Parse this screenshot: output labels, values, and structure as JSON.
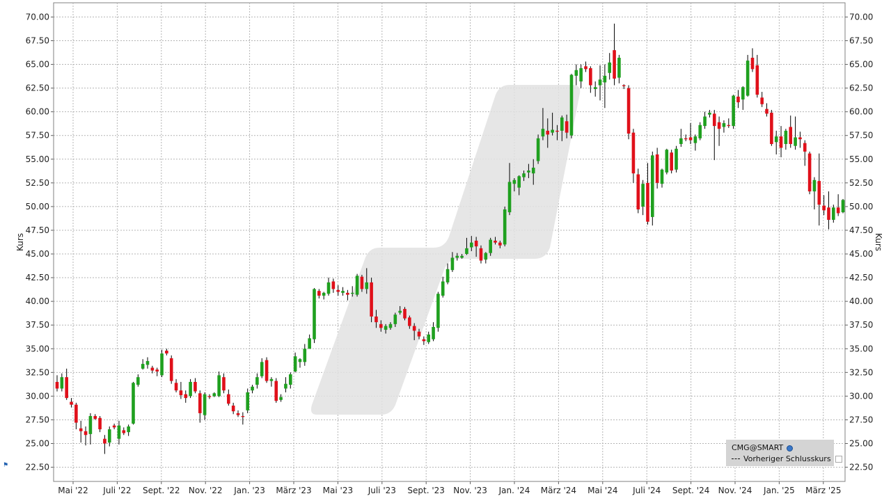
{
  "chart_data": {
    "type": "candlestick",
    "ylabel_left": "Kurs",
    "ylabel_right": "Kurs",
    "ylim": [
      21.0,
      71.5
    ],
    "yticks": [
      "22.50",
      "25.00",
      "27.50",
      "30.00",
      "32.50",
      "35.00",
      "37.50",
      "40.00",
      "42.50",
      "45.00",
      "47.50",
      "50.00",
      "52.50",
      "55.00",
      "57.50",
      "60.00",
      "62.50",
      "65.00",
      "67.50",
      "70.00"
    ],
    "xticks": [
      "Mai '22",
      "Juli '22",
      "Sept. '22",
      "Nov. '22",
      "Jan. '23",
      "März '23",
      "Mai '23",
      "Juli '23",
      "Sept. '23",
      "Nov. '23",
      "Jan. '24",
      "März '24",
      "Mai '24",
      "Juli '24",
      "Sept. '24",
      "Nov. '24",
      "Jan. '25",
      "März '25"
    ],
    "grid": true,
    "legend_position": "bottom-right",
    "legend": {
      "symbol": "CMG@SMART",
      "prev_close_label": "Vorheriger Schlusskurs"
    },
    "colors": {
      "up": "#1fa01f",
      "down": "#e0101a",
      "wick": "#000000",
      "grid": "#b4b4b4"
    },
    "candles": [
      [
        31.5,
        32.2,
        30.5,
        30.8
      ],
      [
        30.8,
        32.4,
        30.5,
        32.0
      ],
      [
        32.0,
        32.9,
        29.6,
        29.8
      ],
      [
        29.4,
        29.8,
        28.8,
        29.1
      ],
      [
        29.1,
        29.3,
        26.5,
        27.2
      ],
      [
        26.6,
        27.4,
        25.1,
        26.3
      ],
      [
        26.3,
        26.8,
        24.8,
        25.9
      ],
      [
        26.0,
        28.2,
        24.9,
        27.9
      ],
      [
        27.9,
        28.1,
        27.5,
        27.6
      ],
      [
        27.7,
        27.9,
        26.2,
        26.5
      ],
      [
        25.5,
        25.9,
        23.9,
        25.0
      ],
      [
        25.1,
        26.8,
        24.7,
        26.5
      ],
      [
        26.9,
        27.1,
        26.5,
        26.7
      ],
      [
        25.5,
        27.4,
        24.9,
        26.9
      ],
      [
        26.4,
        26.7,
        25.9,
        26.1
      ],
      [
        26.2,
        27.0,
        25.8,
        26.8
      ],
      [
        27.1,
        31.5,
        27.0,
        31.4
      ],
      [
        31.2,
        32.3,
        31.0,
        32.0
      ],
      [
        32.9,
        33.9,
        32.8,
        33.4
      ],
      [
        33.3,
        34.1,
        32.9,
        33.7
      ],
      [
        33.0,
        33.2,
        32.4,
        32.7
      ],
      [
        32.8,
        33.0,
        32.1,
        32.6
      ],
      [
        32.2,
        34.9,
        32.0,
        34.5
      ],
      [
        34.8,
        35.0,
        34.3,
        34.5
      ],
      [
        34.0,
        34.3,
        31.3,
        31.6
      ],
      [
        31.4,
        31.8,
        30.4,
        30.6
      ],
      [
        30.6,
        31.5,
        29.7,
        30.1
      ],
      [
        30.2,
        30.6,
        29.3,
        29.8
      ],
      [
        30.0,
        31.8,
        29.8,
        31.5
      ],
      [
        31.5,
        31.9,
        30.3,
        30.5
      ],
      [
        30.3,
        30.6,
        27.2,
        28.2
      ],
      [
        28.0,
        30.4,
        27.5,
        30.2
      ],
      [
        30.0,
        30.2,
        29.7,
        29.9
      ],
      [
        30.0,
        30.4,
        29.9,
        30.3
      ],
      [
        30.0,
        32.6,
        29.9,
        32.2
      ],
      [
        32.0,
        32.4,
        30.3,
        30.6
      ],
      [
        30.2,
        30.7,
        29.0,
        29.2
      ],
      [
        29.0,
        29.3,
        28.1,
        28.4
      ],
      [
        28.2,
        28.5,
        27.8,
        28.0
      ],
      [
        27.9,
        28.3,
        27.0,
        27.8
      ],
      [
        28.5,
        30.8,
        28.2,
        30.4
      ],
      [
        30.6,
        31.2,
        30.3,
        31.0
      ],
      [
        31.2,
        32.4,
        30.8,
        32.0
      ],
      [
        32.1,
        34.0,
        31.9,
        33.6
      ],
      [
        33.8,
        34.1,
        31.4,
        31.6
      ],
      [
        31.6,
        32.0,
        31.0,
        31.8
      ],
      [
        31.6,
        31.9,
        29.3,
        29.5
      ],
      [
        29.6,
        30.2,
        29.4,
        29.9
      ],
      [
        30.8,
        32.0,
        30.4,
        31.3
      ],
      [
        31.2,
        32.5,
        30.8,
        32.3
      ],
      [
        32.6,
        34.6,
        32.5,
        34.2
      ],
      [
        33.6,
        34.0,
        33.0,
        33.9
      ],
      [
        33.6,
        35.5,
        33.2,
        35.0
      ],
      [
        35.0,
        36.5,
        35.0,
        36.1
      ],
      [
        36.0,
        41.4,
        35.6,
        41.3
      ],
      [
        41.1,
        41.3,
        40.3,
        40.6
      ],
      [
        40.6,
        41.0,
        40.2,
        40.9
      ],
      [
        40.8,
        42.5,
        40.6,
        42.0
      ],
      [
        42.1,
        42.4,
        40.9,
        41.3
      ],
      [
        41.2,
        41.7,
        40.6,
        41.0
      ],
      [
        40.9,
        41.5,
        40.6,
        41.1
      ],
      [
        40.9,
        41.2,
        40.1,
        40.7
      ],
      [
        40.8,
        41.6,
        40.5,
        40.9
      ],
      [
        40.7,
        42.9,
        40.5,
        42.7
      ],
      [
        42.6,
        42.8,
        41.0,
        41.3
      ],
      [
        41.3,
        43.5,
        40.8,
        42.0
      ],
      [
        42.0,
        42.5,
        37.8,
        38.4
      ],
      [
        38.4,
        39.1,
        37.2,
        37.8
      ],
      [
        37.6,
        38.0,
        36.8,
        37.2
      ],
      [
        37.0,
        37.6,
        36.6,
        37.4
      ],
      [
        37.2,
        37.8,
        37.0,
        37.6
      ],
      [
        37.6,
        38.8,
        37.3,
        38.6
      ],
      [
        38.8,
        39.5,
        38.6,
        39.0
      ],
      [
        39.2,
        39.4,
        38.0,
        38.2
      ],
      [
        38.3,
        38.5,
        37.1,
        37.4
      ],
      [
        37.4,
        37.7,
        35.9,
        36.9
      ],
      [
        36.8,
        37.1,
        36.0,
        36.3
      ],
      [
        36.0,
        36.3,
        35.4,
        35.8
      ],
      [
        35.7,
        36.8,
        35.5,
        36.5
      ],
      [
        36.0,
        37.8,
        35.8,
        37.3
      ],
      [
        37.2,
        41.0,
        36.8,
        40.8
      ],
      [
        40.6,
        42.6,
        40.4,
        42.1
      ],
      [
        42.0,
        44.0,
        41.8,
        43.4
      ],
      [
        43.3,
        45.2,
        43.1,
        44.6
      ],
      [
        44.6,
        45.1,
        44.3,
        44.8
      ],
      [
        44.6,
        45.0,
        44.5,
        44.8
      ],
      [
        45.0,
        46.7,
        44.9,
        45.6
      ],
      [
        45.7,
        46.9,
        45.3,
        46.2
      ],
      [
        46.4,
        46.8,
        44.7,
        45.8
      ],
      [
        45.6,
        45.9,
        44.0,
        44.3
      ],
      [
        44.4,
        45.2,
        44.0,
        45.1
      ],
      [
        45.1,
        46.7,
        44.8,
        46.5
      ],
      [
        46.4,
        46.8,
        46.0,
        46.2
      ],
      [
        46.2,
        46.4,
        45.6,
        45.9
      ],
      [
        46.0,
        50.0,
        45.8,
        49.7
      ],
      [
        49.4,
        54.6,
        49.1,
        52.6
      ],
      [
        52.4,
        53.0,
        51.6,
        52.8
      ],
      [
        52.0,
        53.3,
        51.2,
        53.2
      ],
      [
        53.1,
        53.8,
        52.7,
        53.5
      ],
      [
        53.6,
        54.5,
        53.0,
        53.8
      ],
      [
        53.5,
        55.0,
        52.3,
        54.1
      ],
      [
        54.8,
        57.6,
        54.5,
        57.2
      ],
      [
        57.4,
        60.4,
        57.0,
        58.2
      ],
      [
        58.0,
        59.3,
        56.2,
        57.6
      ],
      [
        57.8,
        59.9,
        57.5,
        58.1
      ],
      [
        58.0,
        58.6,
        57.0,
        57.9
      ],
      [
        58.0,
        59.6,
        56.9,
        59.4
      ],
      [
        59.0,
        59.7,
        57.2,
        57.8
      ],
      [
        57.5,
        64.0,
        57.2,
        63.9
      ],
      [
        63.8,
        65.0,
        62.8,
        64.4
      ],
      [
        63.2,
        65.0,
        62.5,
        64.6
      ],
      [
        64.8,
        65.3,
        64.2,
        64.5
      ],
      [
        64.6,
        64.8,
        62.0,
        62.8
      ],
      [
        62.4,
        63.2,
        61.6,
        62.6
      ],
      [
        62.8,
        64.9,
        61.2,
        63.4
      ],
      [
        63.1,
        65.0,
        60.4,
        63.8
      ],
      [
        64.1,
        66.2,
        63.4,
        65.2
      ],
      [
        66.5,
        69.3,
        62.8,
        63.5
      ],
      [
        63.6,
        66.0,
        63.0,
        65.7
      ],
      [
        62.8,
        62.9,
        62.4,
        62.7
      ],
      [
        62.5,
        62.8,
        57.1,
        57.7
      ],
      [
        57.8,
        58.2,
        52.5,
        53.5
      ],
      [
        53.4,
        54.0,
        49.3,
        49.7
      ],
      [
        50.0,
        52.8,
        49.1,
        52.4
      ],
      [
        52.5,
        54.6,
        48.1,
        48.4
      ],
      [
        48.9,
        55.8,
        48.0,
        55.4
      ],
      [
        55.5,
        56.2,
        51.9,
        52.5
      ],
      [
        52.4,
        54.0,
        52.0,
        53.9
      ],
      [
        53.6,
        56.1,
        53.4,
        56.0
      ],
      [
        55.7,
        56.0,
        53.5,
        53.8
      ],
      [
        53.9,
        56.4,
        53.6,
        56.1
      ],
      [
        56.6,
        58.2,
        56.3,
        57.2
      ],
      [
        57.2,
        57.6,
        56.9,
        57.1
      ],
      [
        57.3,
        58.8,
        56.6,
        57.0
      ],
      [
        56.7,
        57.6,
        55.9,
        57.4
      ],
      [
        57.2,
        58.9,
        57.0,
        58.6
      ],
      [
        58.5,
        60.0,
        58.2,
        59.5
      ],
      [
        59.7,
        60.2,
        59.4,
        59.9
      ],
      [
        59.8,
        60.2,
        54.9,
        58.5
      ],
      [
        58.9,
        59.5,
        56.4,
        58.2
      ],
      [
        58.4,
        59.1,
        57.8,
        58.8
      ],
      [
        58.6,
        59.3,
        58.3,
        58.5
      ],
      [
        58.5,
        61.8,
        58.2,
        61.7
      ],
      [
        61.6,
        62.3,
        60.4,
        61.0
      ],
      [
        61.3,
        62.7,
        60.2,
        62.6
      ],
      [
        61.7,
        66.0,
        61.6,
        65.4
      ],
      [
        65.7,
        66.7,
        64.2,
        64.5
      ],
      [
        64.9,
        66.0,
        61.5,
        61.8
      ],
      [
        61.5,
        62.1,
        60.5,
        60.8
      ],
      [
        60.3,
        60.9,
        59.5,
        59.8
      ],
      [
        59.9,
        60.2,
        56.4,
        56.6
      ],
      [
        56.8,
        58.0,
        55.5,
        57.4
      ],
      [
        57.4,
        58.5,
        55.2,
        56.2
      ],
      [
        56.6,
        58.2,
        56.0,
        58.0
      ],
      [
        58.4,
        59.6,
        56.2,
        56.6
      ],
      [
        56.4,
        59.5,
        56.0,
        57.3
      ],
      [
        57.3,
        57.9,
        56.2,
        57.1
      ],
      [
        56.7,
        57.0,
        54.3,
        55.8
      ],
      [
        55.6,
        55.8,
        51.3,
        51.6
      ],
      [
        51.6,
        53.1,
        49.7,
        52.8
      ],
      [
        52.7,
        55.6,
        48.0,
        50.2
      ],
      [
        50.1,
        51.2,
        49.1,
        49.6
      ],
      [
        49.9,
        51.6,
        47.6,
        48.6
      ],
      [
        48.6,
        50.2,
        48.3,
        49.9
      ],
      [
        49.9,
        51.3,
        49.0,
        49.3
      ],
      [
        49.4,
        50.8,
        49.3,
        50.7
      ]
    ]
  }
}
